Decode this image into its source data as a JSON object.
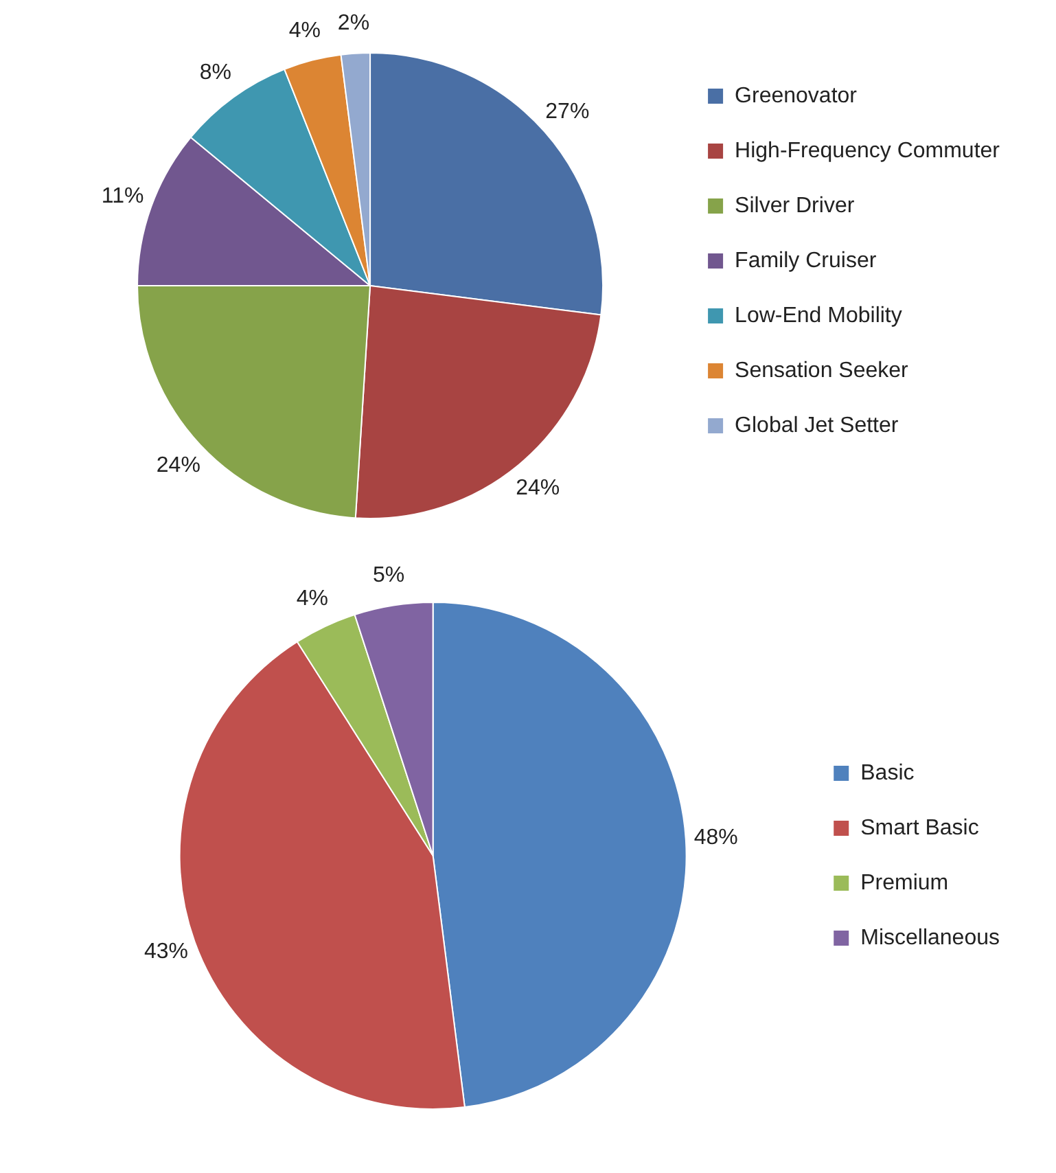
{
  "chart_data": [
    {
      "type": "pie",
      "categories": [
        "Greenovator",
        "High-Frequency Commuter",
        "Silver Driver",
        "Family Cruiser",
        "Low-End Mobility",
        "Sensation Seeker",
        "Global Jet Setter"
      ],
      "values": [
        27,
        24,
        24,
        11,
        8,
        4,
        2
      ],
      "colors": [
        "#4a6fa5",
        "#a84442",
        "#86a34a",
        "#71578f",
        "#3f97b0",
        "#dc8533",
        "#93a9cf"
      ],
      "value_labels": [
        "27%",
        "24%",
        "24%",
        "11%",
        "8%",
        "4%",
        "2%"
      ],
      "legend": "top right"
    },
    {
      "type": "pie",
      "categories": [
        "Basic",
        "Smart Basic",
        "Premium",
        "Miscellaneous"
      ],
      "values": [
        48,
        43,
        4,
        5
      ],
      "colors": [
        "#4f81bd",
        "#c0504d",
        "#9bbb59",
        "#8064a2"
      ],
      "value_labels": [
        "48%",
        "43%",
        "4%",
        "5%"
      ],
      "legend": "right"
    }
  ]
}
